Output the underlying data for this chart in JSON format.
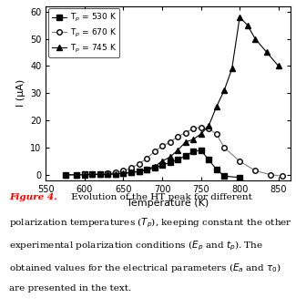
{
  "series": [
    {
      "label": "T$_p$ = 530 K",
      "marker": "s",
      "mfc": "black",
      "mec": "black",
      "color": "black",
      "ms": 4,
      "x": [
        575,
        590,
        600,
        610,
        620,
        630,
        640,
        650,
        660,
        670,
        680,
        690,
        700,
        710,
        720,
        730,
        740,
        750,
        760,
        770,
        780,
        800
      ],
      "y": [
        0.0,
        0.0,
        0.1,
        0.1,
        0.2,
        0.2,
        0.3,
        0.5,
        0.8,
        1.2,
        1.8,
        2.5,
        3.5,
        4.5,
        5.5,
        7.0,
        8.5,
        9.0,
        5.5,
        2.0,
        -0.5,
        -1.0
      ]
    },
    {
      "label": "T$_p$ = 670 K",
      "marker": "o",
      "mfc": "white",
      "mec": "black",
      "color": "gray",
      "ms": 4,
      "x": [
        575,
        590,
        600,
        610,
        620,
        630,
        640,
        650,
        660,
        670,
        680,
        690,
        700,
        710,
        720,
        730,
        740,
        750,
        760,
        770,
        780,
        800,
        820,
        840,
        855
      ],
      "y": [
        0.0,
        0.0,
        0.1,
        0.2,
        0.3,
        0.5,
        0.8,
        1.5,
        2.5,
        4.0,
        6.0,
        8.5,
        10.5,
        12.0,
        14.0,
        15.5,
        17.0,
        17.5,
        17.0,
        15.0,
        10.0,
        5.0,
        1.5,
        0.0,
        -0.5
      ]
    },
    {
      "label": "T$_p$ = 745 K",
      "marker": "^",
      "mfc": "black",
      "mec": "black",
      "color": "black",
      "ms": 4,
      "x": [
        575,
        590,
        600,
        610,
        620,
        630,
        640,
        650,
        660,
        670,
        680,
        690,
        700,
        710,
        720,
        730,
        740,
        750,
        760,
        770,
        780,
        790,
        800,
        810,
        820,
        835,
        850
      ],
      "y": [
        0.0,
        0.0,
        0.0,
        0.1,
        0.1,
        0.2,
        0.3,
        0.5,
        0.8,
        1.2,
        2.0,
        3.0,
        5.0,
        6.5,
        9.0,
        12.0,
        13.0,
        15.0,
        18.0,
        25.0,
        31.0,
        39.0,
        58.0,
        55.0,
        50.0,
        45.0,
        40.0
      ]
    }
  ],
  "xlim": [
    550,
    865
  ],
  "ylim": [
    -2,
    62
  ],
  "yticks": [
    0.0,
    10.0,
    20.0,
    30.0,
    40.0,
    50.0,
    60.0
  ],
  "xticks": [
    550,
    600,
    650,
    700,
    750,
    800,
    850
  ],
  "xlabel": "Temperature (K)",
  "ylabel": "I (μA)",
  "caption_bold": "Figure 4.",
  "caption_body": " Evolution of the HT peak for different polarization temperatures (Tₚ), keeping constant the other experimental polarization conditions (Eₚ and tₚ). The obtained values for the electrical parameters (Eₐ and τ₀) are presented in the text.",
  "background_color": "#ffffff",
  "legend_fontsize": 6.5,
  "tick_labelsize": 7,
  "axis_labelsize": 8,
  "caption_fontsize": 7.5
}
